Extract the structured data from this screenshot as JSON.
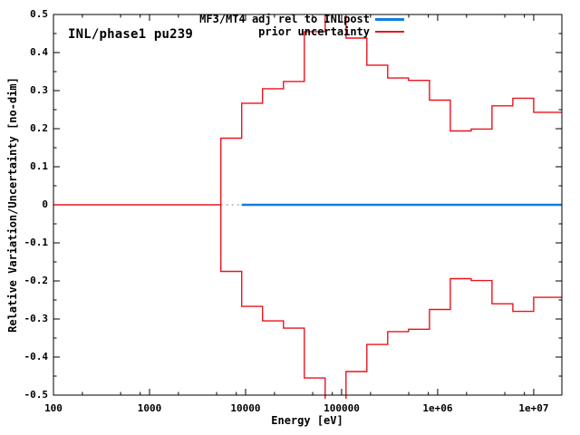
{
  "title": "INL/phase1 pu239",
  "x_axis_label": "Energy [eV]",
  "y_axis_label": "Relative Variation/Uncertainty [no-dim]",
  "legend": {
    "items": [
      {
        "label": "MF3/MT4 adj rel to INLpost",
        "color": "#0f7ee0",
        "thickness": 3
      },
      {
        "label": "prior uncertainty",
        "color": "#e8141e",
        "thickness": 2
      }
    ]
  },
  "colors": {
    "adjusted_line": "#0f7ee0",
    "prior_uncertainty": "#e8141e",
    "zero_dotted": "#b4b4b4",
    "axis": "#000000",
    "background": "#ffffff"
  },
  "chart_data": {
    "type": "line",
    "subtype": "step-staircase",
    "title": "INL/phase1 pu239",
    "xlabel": "Energy [eV]",
    "ylabel": "Relative Variation/Uncertainty [no-dim]",
    "x_scale": "log10",
    "xlim": [
      100,
      19640000
    ],
    "ylim": [
      -0.5,
      0.5
    ],
    "grid": false,
    "legend_position": "top-right-inside",
    "x_major_ticks": [
      {
        "value": 100,
        "label": "100"
      },
      {
        "value": 1000,
        "label": "1000"
      },
      {
        "value": 10000,
        "label": "10000"
      },
      {
        "value": 100000,
        "label": "100000"
      },
      {
        "value": 1000000,
        "label": "1e+06"
      },
      {
        "value": 10000000,
        "label": "1e+07"
      }
    ],
    "x_minor_mantissas": [
      2,
      5,
      8
    ],
    "y_major_ticks": [
      {
        "value": 0.5,
        "label": "0.5"
      },
      {
        "value": 0.4,
        "label": "0.4"
      },
      {
        "value": 0.3,
        "label": "0.3"
      },
      {
        "value": 0.2,
        "label": "0.2"
      },
      {
        "value": 0.1,
        "label": "0.1"
      },
      {
        "value": 0,
        "label": "0"
      },
      {
        "value": -0.1,
        "label": "-0.1"
      },
      {
        "value": -0.2,
        "label": "-0.2"
      },
      {
        "value": -0.3,
        "label": "-0.3"
      },
      {
        "value": -0.4,
        "label": "-0.4"
      },
      {
        "value": -0.5,
        "label": "-0.5"
      }
    ],
    "y_minor_step": 0.05,
    "series": [
      {
        "name": "MF3/MT4 adj rel to INLpost",
        "color": "#0f7ee0",
        "style": "solid",
        "stroke_width": 2.6,
        "x": [
          9118.8,
          19640000
        ],
        "y": [
          0,
          0
        ]
      },
      {
        "name": "prior uncertainty",
        "color": "#e8141e",
        "style": "step",
        "stroke_width": 1.4,
        "plotted_as": "plus-and-minus mirrored staircase, zero below first boundary, clipped beyond ylim near peak",
        "group_boundaries_eV": [
          100,
          5530.8,
          9118.8,
          15034,
          24788,
          40868,
          67379,
          111090,
          183160,
          301970,
          497870,
          820850,
          1353400,
          2231300,
          3678800,
          6065300,
          10000000,
          19640000
        ],
        "uncertainty_values": [
          0,
          0.175,
          0.267,
          0.305,
          0.324,
          0.455,
          0.512,
          0.438,
          0.367,
          0.333,
          0.327,
          0.275,
          0.194,
          0.199,
          0.26,
          0.28,
          0.243
        ]
      }
    ],
    "zero_gap_dotted_segment_eV": [
      5530.8,
      9118.8
    ]
  }
}
